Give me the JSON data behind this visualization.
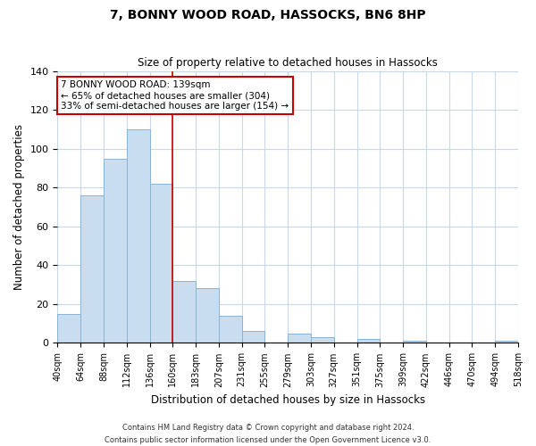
{
  "title": "7, BONNY WOOD ROAD, HASSOCKS, BN6 8HP",
  "subtitle": "Size of property relative to detached houses in Hassocks",
  "xlabel": "Distribution of detached houses by size in Hassocks",
  "ylabel": "Number of detached properties",
  "bin_labels": [
    "40sqm",
    "64sqm",
    "88sqm",
    "112sqm",
    "136sqm",
    "160sqm",
    "183sqm",
    "207sqm",
    "231sqm",
    "255sqm",
    "279sqm",
    "303sqm",
    "327sqm",
    "351sqm",
    "375sqm",
    "399sqm",
    "422sqm",
    "446sqm",
    "470sqm",
    "494sqm",
    "518sqm"
  ],
  "bar_heights": [
    15,
    76,
    95,
    110,
    82,
    32,
    28,
    14,
    6,
    0,
    5,
    3,
    0,
    2,
    0,
    1,
    0,
    0,
    0,
    1
  ],
  "bar_color": "#c8ddf0",
  "bar_edge_color": "#8ab4d4",
  "vline_x": 5,
  "vline_color": "#cc0000",
  "ylim": [
    0,
    140
  ],
  "yticks": [
    0,
    20,
    40,
    60,
    80,
    100,
    120,
    140
  ],
  "annotation_title": "7 BONNY WOOD ROAD: 139sqm",
  "annotation_line1": "← 65% of detached houses are smaller (304)",
  "annotation_line2": "33% of semi-detached houses are larger (154) →",
  "annotation_box_color": "#ffffff",
  "annotation_box_edge": "#cc0000",
  "footer_line1": "Contains HM Land Registry data © Crown copyright and database right 2024.",
  "footer_line2": "Contains public sector information licensed under the Open Government Licence v3.0.",
  "background_color": "#ffffff",
  "grid_color": "#c8d8e8"
}
